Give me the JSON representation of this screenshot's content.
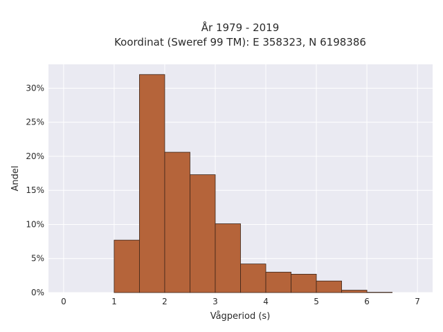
{
  "chart_data": {
    "type": "bar",
    "title_lines": [
      "År 1979 - 2019",
      "Koordinat (Sweref 99 TM): E 358323, N 6198386"
    ],
    "xlabel": "Vågperiod (s)",
    "ylabel": "Andel",
    "xlim": [
      -0.3,
      7.3
    ],
    "ylim": [
      0,
      33.5
    ],
    "x_ticks": [
      {
        "value": 0,
        "label": "0"
      },
      {
        "value": 1,
        "label": "1"
      },
      {
        "value": 2,
        "label": "2"
      },
      {
        "value": 3,
        "label": "3"
      },
      {
        "value": 4,
        "label": "4"
      },
      {
        "value": 5,
        "label": "5"
      },
      {
        "value": 6,
        "label": "6"
      },
      {
        "value": 7,
        "label": "7"
      }
    ],
    "y_ticks": [
      {
        "value": 0,
        "label": "0%"
      },
      {
        "value": 5,
        "label": "5%"
      },
      {
        "value": 10,
        "label": "10%"
      },
      {
        "value": 15,
        "label": "15%"
      },
      {
        "value": 20,
        "label": "20%"
      },
      {
        "value": 25,
        "label": "25%"
      },
      {
        "value": 30,
        "label": "30%"
      }
    ],
    "bins": [
      {
        "start": 1.0,
        "end": 1.5,
        "value": 7.7
      },
      {
        "start": 1.5,
        "end": 2.0,
        "value": 32.0
      },
      {
        "start": 2.0,
        "end": 2.5,
        "value": 20.6
      },
      {
        "start": 2.5,
        "end": 3.0,
        "value": 17.3
      },
      {
        "start": 3.0,
        "end": 3.5,
        "value": 10.1
      },
      {
        "start": 3.5,
        "end": 4.0,
        "value": 4.2
      },
      {
        "start": 4.0,
        "end": 4.5,
        "value": 3.0
      },
      {
        "start": 4.5,
        "end": 5.0,
        "value": 2.7
      },
      {
        "start": 5.0,
        "end": 5.5,
        "value": 1.7
      },
      {
        "start": 5.5,
        "end": 6.0,
        "value": 0.35
      },
      {
        "start": 6.0,
        "end": 6.5,
        "value": 0.05
      }
    ],
    "grid": true,
    "colors": {
      "bar_fill": "#b5643a",
      "bar_stroke": "#3b2418",
      "plot_background": "#eaeaf2",
      "grid": "#ffffff"
    }
  }
}
